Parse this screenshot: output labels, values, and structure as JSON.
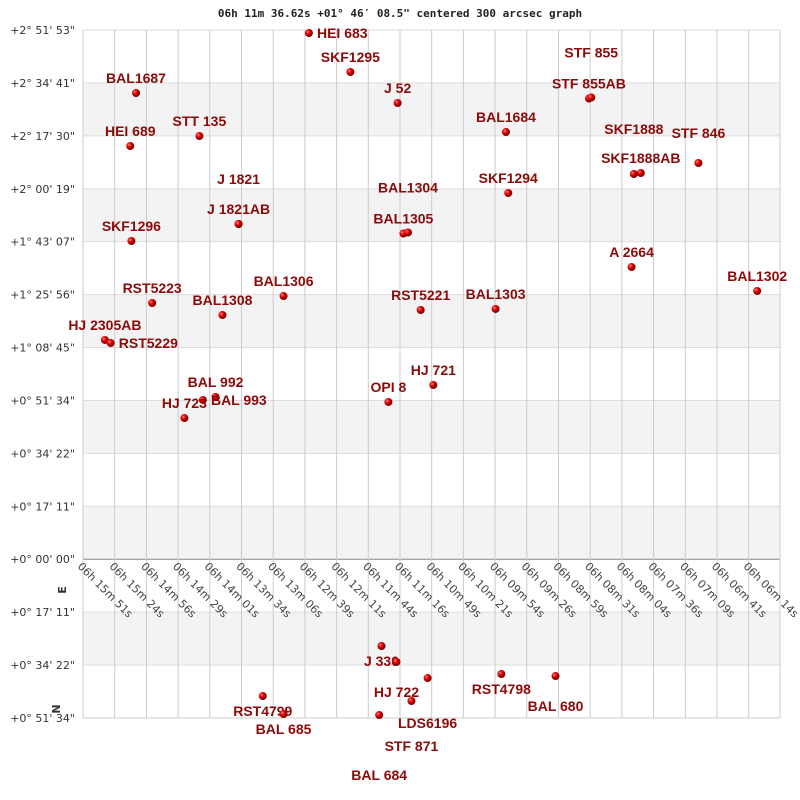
{
  "chart_data": {
    "type": "scatter",
    "title": "06h 11m 36.62s +01° 46′ 08.5\" centered 300 arcsec graph",
    "x_ticks": [
      "06h 15m 51s",
      "06h 15m 24s",
      "06h 14m 56s",
      "06h 14m 29s",
      "06h 14m 01s",
      "06h 13m 34s",
      "06h 13m 06s",
      "06h 12m 39s",
      "06h 12m 11s",
      "06h 11m 44s",
      "06h 11m 16s",
      "06h 10m 49s",
      "06h 10m 21s",
      "06h 09m 54s",
      "06h 09m 26s",
      "06h 08m 59s",
      "06h 08m 31s",
      "06h 08m 04s",
      "06h 07m 36s",
      "06h 07m 09s",
      "06h 06m 41s",
      "06h 06m 14s"
    ],
    "y_ticks": [
      "+2° 51' 53\"",
      "+2° 34' 41\"",
      "+2° 17' 30\"",
      "+2° 00' 19\"",
      "+1° 43' 07\"",
      "+1° 25' 56\"",
      "+1° 08' 45\"",
      "+0° 51' 34\"",
      "+0° 34' 22\"",
      "+0° 17' 11\"",
      "+0° 00' 00\"",
      "+0° 17' 11\"",
      "+0° 34' 22\"",
      "+0° 51' 34\""
    ],
    "xlim": [
      "06h 16m 03s",
      "06h 05m 48s"
    ],
    "ylim": [
      "-0° 51' 34\"",
      "+2° 51' 53\""
    ],
    "grid": true,
    "compass": {
      "east": "E",
      "north": "N"
    },
    "marker_color": "#dd0000",
    "label_color": "#8b0a0a",
    "points": [
      {
        "name": "HEI 683",
        "ra": "06h 12m 35s",
        "dec": "+2° 50' 31\""
      },
      {
        "name": "BAL1687",
        "ra": "06h 15m 05s",
        "dec": "+2° 31' 04\""
      },
      {
        "name": "SKF1295",
        "ra": "06h 11m 59s",
        "dec": "+2° 37' 52\""
      },
      {
        "name": "J   52",
        "ra": "06h 11m 18s",
        "dec": "+2° 27' 49\""
      },
      {
        "name": "STF 855AB",
        "ra": "06h 08m 32s",
        "dec": "+2° 29' 16\""
      },
      {
        "name": "STF 855",
        "ra": "06h 08m 30s",
        "dec": "+2° 29' 36\""
      },
      {
        "name": "BAL1684",
        "ra": "06h 09m 44s",
        "dec": "+2° 18' 25\""
      },
      {
        "name": "STT 135",
        "ra": "06h 14m 10s",
        "dec": "+2° 17' 07\""
      },
      {
        "name": "HEI 689",
        "ra": "06h 15m 10s",
        "dec": "+2° 13' 53\""
      },
      {
        "name": "SKF1888AB",
        "ra": "06h 07m 47s",
        "dec": "+2° 05' 08\""
      },
      {
        "name": "SKF1888",
        "ra": "06h 07m 53s",
        "dec": "+2° 04' 48\""
      },
      {
        "name": "STF 846",
        "ra": "06h 06m 57s",
        "dec": "+2° 08' 22\""
      },
      {
        "name": "SKF1294",
        "ra": "06h 09m 42s",
        "dec": "+1° 58' 39\""
      },
      {
        "name": "J  1821AB",
        "ra": "06h 13m 36s",
        "dec": "+1° 48' 36\""
      },
      {
        "name": "J  1821",
        "ra": "06h 13m 36s",
        "dec": "+1° 48' 36\""
      },
      {
        "name": "BAL1305",
        "ra": "06h 11m 13s",
        "dec": "+1° 45' 31\""
      },
      {
        "name": "BAL1304",
        "ra": "06h 11m 09s",
        "dec": "+1° 45' 51\""
      },
      {
        "name": "SKF1296",
        "ra": "06h 15m 09s",
        "dec": "+1° 43' 05\""
      },
      {
        "name": "A  2664",
        "ra": "06h 07m 55s",
        "dec": "+1° 34' 39\""
      },
      {
        "name": "BAL1302",
        "ra": "06h 06m 06s",
        "dec": "+1° 26' 53\""
      },
      {
        "name": "BAL1306",
        "ra": "06h 12m 57s",
        "dec": "+1° 25' 15\""
      },
      {
        "name": "RST5223",
        "ra": "06h 14m 51s",
        "dec": "+1° 22' 59\""
      },
      {
        "name": "RST5221",
        "ra": "06h 10m 58s",
        "dec": "+1° 20' 43\""
      },
      {
        "name": "BAL1303",
        "ra": "06h 09m 53s",
        "dec": "+1° 21' 03\""
      },
      {
        "name": "BAL1308",
        "ra": "06h 13m 50s",
        "dec": "+1° 19' 06\""
      },
      {
        "name": "HJ 2305AB",
        "ra": "06h 15m 32s",
        "dec": "+1° 11' 00\""
      },
      {
        "name": "RST5229",
        "ra": "06h 15m 27s",
        "dec": "+1° 10' 01\""
      },
      {
        "name": "HJ  721",
        "ra": "06h 10m 47s",
        "dec": "+0° 56' 24\""
      },
      {
        "name": "BAL 992",
        "ra": "06h 13m 56s",
        "dec": "+0° 52' 31\""
      },
      {
        "name": "BAL 993",
        "ra": "06h 14m 07s",
        "dec": "+0° 51' 33\""
      },
      {
        "name": "OPI   8",
        "ra": "06h 11m 26s",
        "dec": "+0° 50' 54\""
      },
      {
        "name": "HJ  723",
        "ra": "06h 14m 23s",
        "dec": "+0° 45' 42\""
      },
      {
        "name": "J   330",
        "ra": "06h 11m 32s",
        "dec": "-0° 28' 12\""
      },
      {
        "name": "HJ  722",
        "ra": "06h 11m 19s",
        "dec": "-0° 33' 23\""
      },
      {
        "name": "RST4798",
        "ra": "06h 09m 48s",
        "dec": "-0° 37' 17\""
      },
      {
        "name": "BAL 680",
        "ra": "06h 09m 01s",
        "dec": "-0° 37' 56\""
      },
      {
        "name": "LDS6196",
        "ra": "06h 10m 52s",
        "dec": "-0° 38' 35\""
      },
      {
        "name": "RST4799",
        "ra": "06h 13m 15s",
        "dec": "-0° 44' 25\""
      },
      {
        "name": "STF 871",
        "ra": "06h 11m 06s",
        "dec": "-0° 46' 02\""
      },
      {
        "name": "BAL 685",
        "ra": "06h 12m 57s",
        "dec": "-0° 50' 15\""
      },
      {
        "name": "BAL 684",
        "ra": "06h 11m 34s",
        "dec": "-0° 50' 34\""
      }
    ]
  }
}
